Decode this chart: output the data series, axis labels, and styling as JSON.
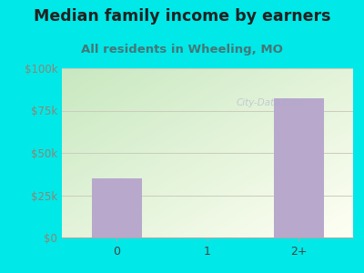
{
  "title": "Median family income by earners",
  "subtitle": "All residents in Wheeling, MO",
  "categories": [
    "0",
    "1",
    "2+"
  ],
  "values": [
    35000,
    0,
    82000
  ],
  "bar_color": "#b8a8cc",
  "background_color": "#00e8e8",
  "title_fontsize": 12.5,
  "subtitle_fontsize": 9.5,
  "ytick_labels": [
    "$0",
    "$25k",
    "$50k",
    "$75k",
    "$100k"
  ],
  "ytick_values": [
    0,
    25000,
    50000,
    75000,
    100000
  ],
  "ylim": [
    0,
    100000
  ],
  "ytick_color": "#888877",
  "xtick_color": "#444444",
  "title_color": "#222222",
  "subtitle_color": "#447777",
  "bar_width": 0.55,
  "watermark": "City-Data.com",
  "grad_top_left": "#c8e8c0",
  "grad_bottom_right": "#f0f5ee"
}
